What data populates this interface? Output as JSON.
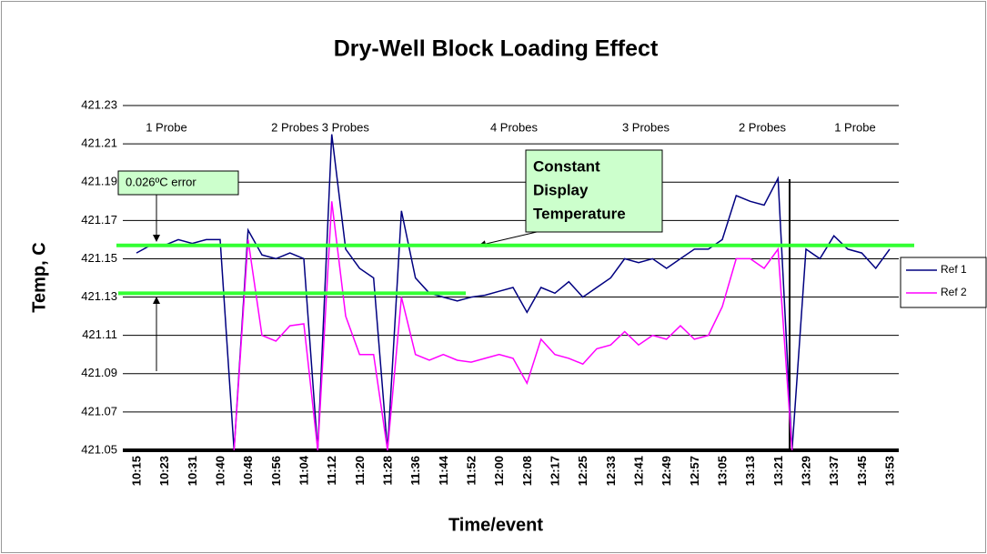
{
  "chart_data": {
    "type": "line",
    "title": "Dry-Well Block Loading Effect",
    "x_label": "Time/event",
    "y_label": "Temp, C",
    "categories": [
      "10:15",
      null,
      "10:23",
      null,
      "10:31",
      null,
      "10:40",
      null,
      "10:48",
      null,
      "10:56",
      null,
      "11:04",
      null,
      "11:12",
      null,
      "11:20",
      null,
      "11:28",
      null,
      "11:36",
      null,
      "11:44",
      null,
      "11:52",
      null,
      "12:00",
      null,
      "12:08",
      null,
      "12:17",
      null,
      "12:25",
      null,
      "12:33",
      null,
      "12:41",
      null,
      "12:49",
      null,
      "12:57",
      null,
      "13:05",
      null,
      "13:13",
      null,
      "13:21",
      null,
      "13:29",
      null,
      "13:37",
      null,
      "13:45",
      null,
      "13:53"
    ],
    "series": [
      {
        "name": "Ref 1",
        "color": "#000080",
        "values": [
          421.153,
          421.157,
          421.157,
          421.16,
          421.158,
          421.16,
          421.16,
          421.05,
          421.165,
          421.152,
          421.15,
          421.153,
          421.15,
          421.05,
          421.215,
          421.155,
          421.145,
          421.14,
          421.05,
          421.175,
          421.14,
          421.132,
          421.13,
          421.128,
          421.13,
          421.131,
          421.133,
          421.135,
          421.122,
          421.135,
          421.132,
          421.138,
          421.13,
          421.135,
          421.14,
          421.15,
          421.148,
          421.15,
          421.145,
          421.15,
          421.155,
          421.155,
          421.16,
          421.183,
          421.18,
          421.178,
          421.192,
          421.05,
          421.155,
          421.15,
          421.162,
          421.155,
          421.153,
          421.145,
          421.155
        ]
      },
      {
        "name": "Ref 2",
        "color": "#ff00ff",
        "values": [
          null,
          null,
          null,
          null,
          null,
          null,
          null,
          421.05,
          421.16,
          421.11,
          421.107,
          421.115,
          421.116,
          421.05,
          421.18,
          421.12,
          421.1,
          421.1,
          421.05,
          421.13,
          421.1,
          421.097,
          421.1,
          421.097,
          421.096,
          421.098,
          421.1,
          421.098,
          421.085,
          421.108,
          421.1,
          421.098,
          421.095,
          421.103,
          421.105,
          421.112,
          421.105,
          421.11,
          421.108,
          421.115,
          421.108,
          421.11,
          421.125,
          421.15,
          421.15,
          421.145,
          421.155,
          421.05,
          null,
          null,
          null,
          null,
          null,
          null,
          null
        ]
      }
    ],
    "ylim": [
      421.05,
      421.23
    ],
    "yticks": [
      421.05,
      421.07,
      421.09,
      421.11,
      421.13,
      421.15,
      421.17,
      421.19,
      421.21,
      421.23
    ],
    "grid": true,
    "legend": "right",
    "reference_lines": [
      {
        "value": 421.157,
        "color": "#33ff33"
      },
      {
        "value": 421.132,
        "color": "#33ff33"
      }
    ],
    "annotations": [
      "1 Probe",
      "2 Probes 3 Probes",
      "4 Probes",
      "3 Probes",
      "2 Probes",
      "1 Probe"
    ],
    "error_note": "0.026ºC error",
    "display_note": [
      "Constant",
      "Display",
      "Temperature"
    ]
  }
}
